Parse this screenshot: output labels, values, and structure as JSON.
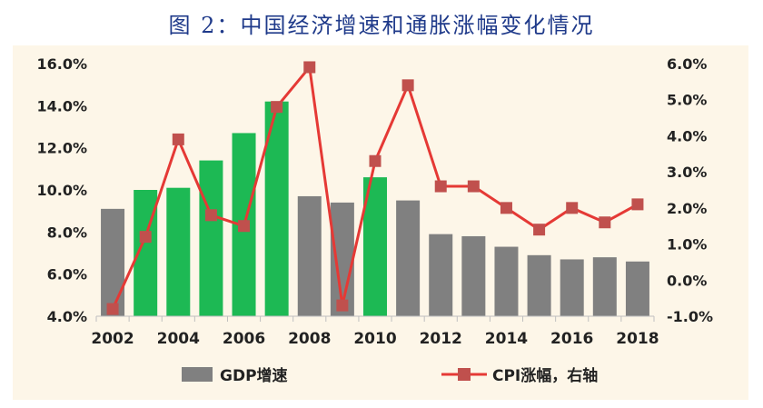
{
  "title": "图 2：中国经济增速和通胀涨幅变化情况",
  "chart_data": {
    "type": "bar+line",
    "years": [
      2002,
      2003,
      2004,
      2005,
      2006,
      2007,
      2008,
      2009,
      2010,
      2011,
      2012,
      2013,
      2014,
      2015,
      2016,
      2017,
      2018
    ],
    "x_tick_labels": [
      "2002",
      "2004",
      "2006",
      "2008",
      "2010",
      "2012",
      "2014",
      "2016",
      "2018"
    ],
    "gdp": {
      "name": "GDP增速",
      "values": [
        9.1,
        10.0,
        10.1,
        11.4,
        12.7,
        14.2,
        9.7,
        9.4,
        10.6,
        9.5,
        7.9,
        7.8,
        7.3,
        6.9,
        6.7,
        6.8,
        6.6
      ],
      "highlight": [
        false,
        true,
        true,
        true,
        true,
        true,
        false,
        false,
        true,
        false,
        false,
        false,
        false,
        false,
        false,
        false,
        false
      ],
      "color": "#808080",
      "highlight_color": "#1db954"
    },
    "cpi": {
      "name": "CPI涨幅，右轴",
      "values": [
        -0.8,
        1.2,
        3.9,
        1.8,
        1.5,
        4.8,
        5.9,
        -0.7,
        3.3,
        5.4,
        2.6,
        2.6,
        2.0,
        1.4,
        2.0,
        1.6,
        2.1
      ],
      "color": "#e53935",
      "marker_color": "#c0504d"
    },
    "left_axis": {
      "min": 4,
      "max": 16,
      "step": 2,
      "labels": [
        "4.0%",
        "6.0%",
        "8.0%",
        "10.0%",
        "12.0%",
        "14.0%",
        "16.0%"
      ]
    },
    "right_axis": {
      "min": -1,
      "max": 6,
      "step": 1,
      "labels": [
        "-1.0%",
        "0.0%",
        "1.0%",
        "2.0%",
        "3.0%",
        "4.0%",
        "5.0%",
        "6.0%"
      ]
    },
    "legend": {
      "gdp_label": "GDP增速",
      "cpi_label": "CPI涨幅，右轴"
    }
  }
}
